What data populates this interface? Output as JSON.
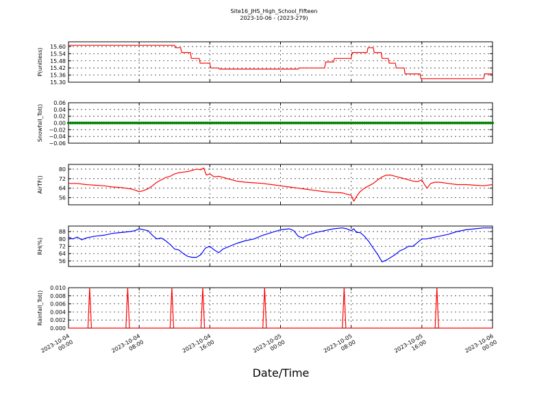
{
  "figure": {
    "title_line1": "Site16_JHS_High_School_Fifteen",
    "title_line2": "2023-10-06 - (2023-279)",
    "xlabel": "Date/Time"
  },
  "x_ticks": [
    {
      "line1": "2023-10-04",
      "line2": "00:00",
      "hours": 0
    },
    {
      "line1": "2023-10-04",
      "line2": "08:00",
      "hours": 8
    },
    {
      "line1": "2023-10-04",
      "line2": "16:00",
      "hours": 16
    },
    {
      "line1": "2023-10-05",
      "line2": "00:00",
      "hours": 24
    },
    {
      "line1": "2023-10-05",
      "line2": "08:00",
      "hours": 32
    },
    {
      "line1": "2023-10-05",
      "line2": "16:00",
      "hours": 40
    },
    {
      "line1": "2023-10-06",
      "line2": "00:00",
      "hours": 48
    }
  ],
  "colors": {
    "pressure": "#ff0000",
    "snowfall": "#008000",
    "airtemp": "#ff0000",
    "rh": "#0000ff",
    "rainfall": "#ff0000"
  },
  "chart_data": [
    {
      "type": "line",
      "ylabel": "P(unitless)",
      "ylim": [
        15.3,
        15.64
      ],
      "yticks": [
        "15.60",
        "15.54",
        "15.48",
        "15.42",
        "15.36",
        "15.30"
      ],
      "grid": true,
      "series": [
        {
          "x": [
            0,
            12,
            12.1,
            12.7,
            12.8,
            13.8,
            13.9,
            14.8,
            14.9,
            16.0,
            16.1,
            17.0,
            17.1,
            26.0,
            26.1,
            29.0,
            29.1,
            30.0,
            30.1,
            32.0,
            32.1,
            33.8,
            33.9,
            34.5,
            34.6,
            35.4,
            35.5,
            36.2,
            36.3,
            37.0,
            37.1,
            38.0,
            38.1,
            39.0,
            39.1,
            39.8,
            39.9,
            42.0,
            42.1,
            47.0,
            47.1,
            48.0
          ],
          "y": [
            15.61,
            15.61,
            15.59,
            15.59,
            15.55,
            15.55,
            15.5,
            15.5,
            15.46,
            15.46,
            15.42,
            15.42,
            15.41,
            15.41,
            15.42,
            15.42,
            15.47,
            15.47,
            15.5,
            15.5,
            15.55,
            15.55,
            15.59,
            15.59,
            15.55,
            15.55,
            15.5,
            15.5,
            15.46,
            15.46,
            15.42,
            15.42,
            15.37,
            15.37,
            15.37,
            15.37,
            15.33,
            15.33,
            15.33,
            15.33,
            15.37,
            15.37
          ]
        }
      ]
    },
    {
      "type": "line",
      "ylabel": "Snowfall_Tot()",
      "ylim": [
        -0.06,
        0.06
      ],
      "yticks": [
        "0.06",
        "0.04",
        "0.02",
        "0.00",
        "−0.02",
        "−0.04",
        "−0.06"
      ],
      "grid": true,
      "markers": true,
      "series": [
        {
          "constant": 0.0,
          "from": 0,
          "to": 48,
          "step": 0.25
        }
      ]
    },
    {
      "type": "line",
      "ylabel": "AirTF()",
      "ylim": [
        50,
        84
      ],
      "yticks": [
        "80",
        "72",
        "64",
        "56"
      ],
      "grid": true,
      "series": [
        {
          "x": [
            0,
            1,
            2,
            3,
            4,
            5,
            6,
            7,
            7.5,
            8,
            8.5,
            9,
            9.5,
            10,
            10.5,
            11,
            11.5,
            12,
            12.5,
            13,
            13.5,
            14,
            14.5,
            15,
            15.3,
            15.6,
            16,
            16.5,
            17,
            17.3,
            18,
            19,
            20,
            21,
            22,
            23,
            24,
            25,
            26,
            27,
            28,
            29,
            30,
            31,
            31.5,
            32,
            32.3,
            32.6,
            33,
            33.5,
            34,
            34.5,
            35,
            35.5,
            36,
            36.5,
            37,
            37.5,
            38,
            38.5,
            39,
            39.5,
            40,
            40.3,
            40.6,
            41,
            41.5,
            42,
            43,
            44,
            45,
            46,
            47,
            48
          ],
          "y": [
            68,
            68,
            67,
            66.5,
            66,
            65,
            64.5,
            63.5,
            62.5,
            61,
            62,
            63.5,
            66,
            69,
            71,
            73,
            74,
            76,
            77,
            77.5,
            78,
            79,
            80,
            79.5,
            81,
            75,
            76,
            73.5,
            74,
            73.5,
            72,
            70,
            69,
            68.5,
            68,
            67,
            66,
            65,
            64,
            63,
            62,
            61,
            60.5,
            60,
            59,
            58,
            53,
            57,
            61,
            64,
            66,
            68,
            71,
            73.5,
            75,
            75,
            74,
            73,
            72,
            71,
            70,
            69.5,
            71,
            67,
            64,
            68,
            69,
            69,
            68,
            67,
            67,
            66.5,
            66,
            67
          ]
        }
      ]
    },
    {
      "type": "line",
      "ylabel": "RH(%)",
      "ylim": [
        50,
        94
      ],
      "yticks": [
        "88",
        "80",
        "72",
        "64",
        "56"
      ],
      "grid": true,
      "series": [
        {
          "x": [
            0,
            0.5,
            1,
            1.5,
            2,
            3,
            4,
            5,
            6,
            7,
            7.5,
            8,
            8.5,
            9,
            9.5,
            10,
            10.5,
            11,
            11.5,
            12,
            12.5,
            13,
            13.5,
            14,
            14.5,
            15,
            15.5,
            16,
            16.5,
            17,
            17.5,
            18,
            19,
            20,
            21,
            22,
            23,
            24,
            25,
            25.5,
            26,
            26.5,
            27,
            28,
            29,
            30,
            31,
            31.5,
            32,
            32.3,
            32.6,
            33,
            33.5,
            34,
            34.5,
            35,
            35.5,
            36,
            36.5,
            37,
            37.5,
            38,
            38.5,
            39,
            39.5,
            40,
            40.5,
            41,
            41.5,
            42,
            43,
            44,
            45,
            46,
            47,
            48
          ],
          "y": [
            82,
            80,
            82,
            79,
            81,
            83,
            84,
            86,
            87,
            88,
            89,
            91,
            90,
            89,
            84,
            80,
            81,
            78,
            74,
            69,
            68,
            64,
            61,
            60,
            60,
            63,
            70,
            72,
            68,
            65,
            69,
            71,
            75,
            78,
            80,
            84,
            87,
            90,
            91,
            89,
            83,
            81,
            84,
            87,
            89,
            91,
            92,
            91,
            89,
            91,
            87,
            87,
            83,
            77,
            70,
            63,
            55,
            57,
            60,
            63,
            67,
            69,
            72,
            72,
            76,
            80,
            80,
            81,
            82,
            83,
            85,
            88,
            90,
            91,
            92,
            92
          ]
        }
      ]
    },
    {
      "type": "line",
      "ylabel": "Rainfall_Tot()",
      "ylim": [
        0,
        0.01
      ],
      "yticks": [
        "0.010",
        "0.008",
        "0.006",
        "0.004",
        "0.002",
        "0.000"
      ],
      "grid": true,
      "series": [
        {
          "x": [
            0,
            2.2,
            2.4,
            2.6,
            6.5,
            6.7,
            6.9,
            11.5,
            11.7,
            11.9,
            15.0,
            15.2,
            15.4,
            22.0,
            22.2,
            22.4,
            31.0,
            31.2,
            31.4,
            41.5,
            41.7,
            41.9,
            48
          ],
          "y": [
            0,
            0,
            0.01,
            0,
            0,
            0.01,
            0,
            0,
            0.01,
            0,
            0,
            0.01,
            0,
            0,
            0.01,
            0,
            0,
            0.01,
            0,
            0,
            0.01,
            0,
            0
          ]
        }
      ]
    }
  ]
}
